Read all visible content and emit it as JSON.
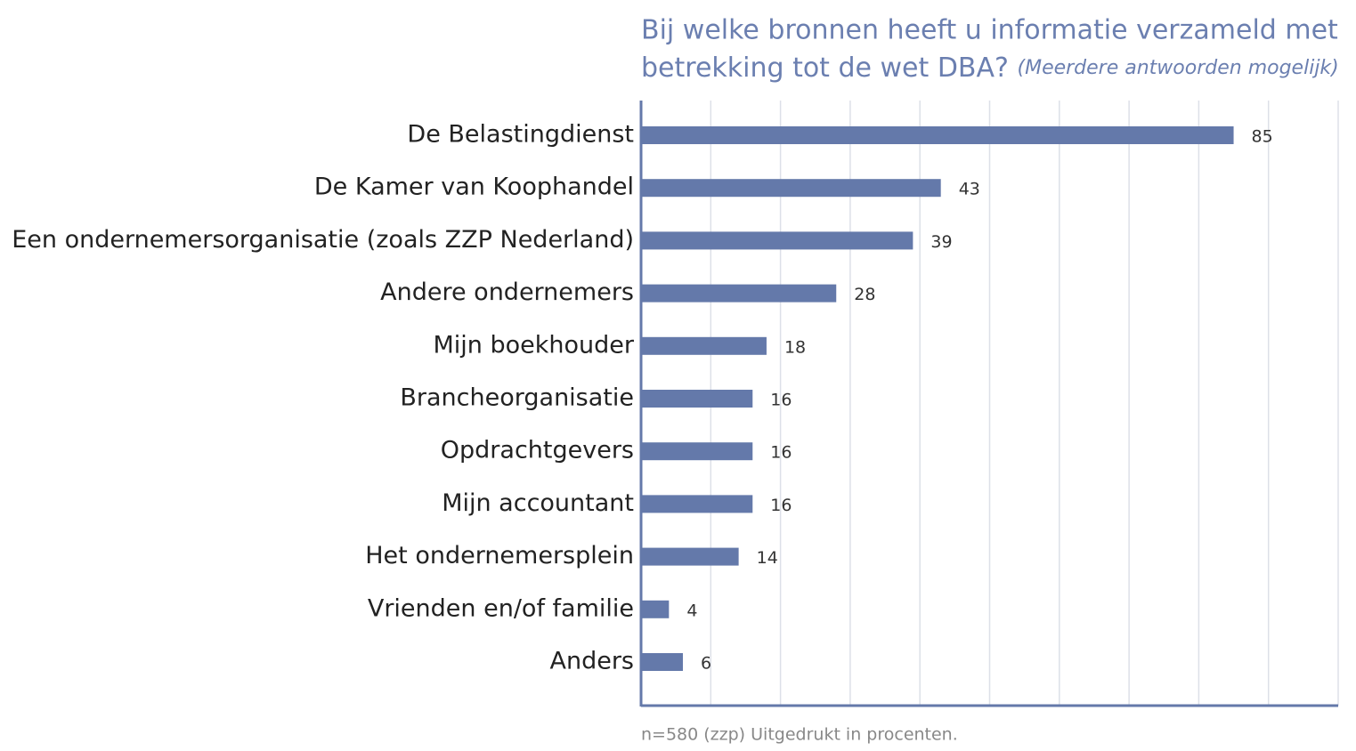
{
  "chart_data": {
    "type": "barh",
    "title": [
      "Bij welke bronnen heeft u informatie verzameld met",
      "betrekking tot de wet DBA?"
    ],
    "subtitle": "(Meerdere antwoorden mogelijk)",
    "note": "n=580 (zzp) Uitgedrukt in procenten.",
    "categories": [
      "De Belastingdienst",
      "De Kamer van Koophandel",
      "Een ondernemersorganisatie (zoals ZZP Nederland)",
      "Andere ondernemers",
      "Mijn boekhouder",
      "Brancheorganisatie",
      "Opdrachtgevers",
      "Mijn accountant",
      "Het ondernemersplein",
      "Vrienden en/of familie",
      "Anders"
    ],
    "values": [
      85,
      43,
      39,
      28,
      18,
      16,
      16,
      16,
      14,
      4,
      6
    ],
    "color": "#6479aa",
    "xlim": [
      0,
      100
    ],
    "xticks": [
      0,
      10,
      20,
      30,
      40,
      50,
      60,
      70,
      80,
      90,
      100
    ],
    "grid": true
  }
}
